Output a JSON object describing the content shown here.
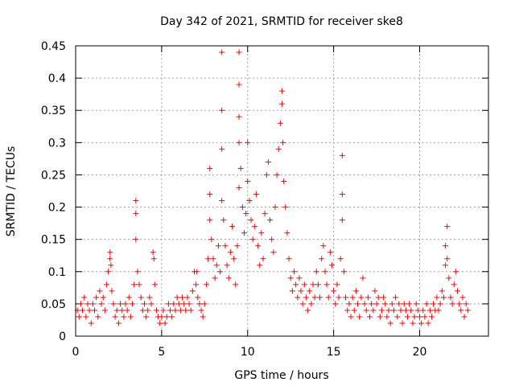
{
  "chart_data": {
    "type": "scatter",
    "title": "Day 342 of 2021, SRMTID for receiver ske8",
    "xlabel": "GPS time / hours",
    "ylabel": "SRMTID / TECUs",
    "xlim": [
      0,
      24
    ],
    "ylim": [
      0,
      0.45
    ],
    "x_ticks": [
      0,
      5,
      10,
      15,
      20
    ],
    "x_tick_labels": [
      "0",
      "5",
      "10",
      "15",
      "20"
    ],
    "y_ticks": [
      0,
      0.05,
      0.1,
      0.15,
      0.2,
      0.25,
      0.3,
      0.35,
      0.4,
      0.45
    ],
    "y_tick_labels": [
      "0",
      "0.05",
      "0.1",
      "0.15",
      "0.2",
      "0.25",
      "0.3",
      "0.35",
      "0.4",
      "0.45"
    ],
    "grid": true,
    "marker": "+",
    "series": [
      {
        "name": "SRMTID",
        "color": "#ff0000",
        "points": [
          [
            0.1,
            0.04
          ],
          [
            0.2,
            0.03
          ],
          [
            0.3,
            0.05
          ],
          [
            0.4,
            0.04
          ],
          [
            0.5,
            0.06
          ],
          [
            0.6,
            0.03
          ],
          [
            0.7,
            0.05
          ],
          [
            0.8,
            0.04
          ],
          [
            0.9,
            0.02
          ],
          [
            1.0,
            0.05
          ],
          [
            1.1,
            0.04
          ],
          [
            1.2,
            0.06
          ],
          [
            1.3,
            0.03
          ],
          [
            1.4,
            0.07
          ],
          [
            1.5,
            0.05
          ],
          [
            1.6,
            0.06
          ],
          [
            1.7,
            0.04
          ],
          [
            1.8,
            0.08
          ],
          [
            1.9,
            0.1
          ],
          [
            2.0,
            0.13
          ],
          [
            2.0,
            0.12
          ],
          [
            2.05,
            0.11
          ],
          [
            2.1,
            0.07
          ],
          [
            2.2,
            0.05
          ],
          [
            2.3,
            0.03
          ],
          [
            2.4,
            0.04
          ],
          [
            2.5,
            0.02
          ],
          [
            2.6,
            0.05
          ],
          [
            2.7,
            0.04
          ],
          [
            2.8,
            0.03
          ],
          [
            2.9,
            0.05
          ],
          [
            3.0,
            0.04
          ],
          [
            3.1,
            0.06
          ],
          [
            3.2,
            0.03
          ],
          [
            3.3,
            0.05
          ],
          [
            3.4,
            0.08
          ],
          [
            3.5,
            0.21
          ],
          [
            3.5,
            0.19
          ],
          [
            3.5,
            0.15
          ],
          [
            3.6,
            0.1
          ],
          [
            3.7,
            0.08
          ],
          [
            3.8,
            0.06
          ],
          [
            3.9,
            0.04
          ],
          [
            4.0,
            0.05
          ],
          [
            4.1,
            0.03
          ],
          [
            4.2,
            0.04
          ],
          [
            4.3,
            0.06
          ],
          [
            4.4,
            0.05
          ],
          [
            4.5,
            0.13
          ],
          [
            4.55,
            0.12
          ],
          [
            4.6,
            0.08
          ],
          [
            4.7,
            0.04
          ],
          [
            4.8,
            0.03
          ],
          [
            4.9,
            0.02
          ],
          [
            5.0,
            0.03
          ],
          [
            5.1,
            0.04
          ],
          [
            5.2,
            0.02
          ],
          [
            5.3,
            0.03
          ],
          [
            5.4,
            0.05
          ],
          [
            5.5,
            0.04
          ],
          [
            5.6,
            0.03
          ],
          [
            5.7,
            0.05
          ],
          [
            5.8,
            0.04
          ],
          [
            5.9,
            0.06
          ],
          [
            6.0,
            0.05
          ],
          [
            6.1,
            0.04
          ],
          [
            6.2,
            0.06
          ],
          [
            6.3,
            0.05
          ],
          [
            6.4,
            0.04
          ],
          [
            6.5,
            0.06
          ],
          [
            6.6,
            0.05
          ],
          [
            6.7,
            0.04
          ],
          [
            6.8,
            0.07
          ],
          [
            6.9,
            0.1
          ],
          [
            7.0,
            0.08
          ],
          [
            7.05,
            0.1
          ],
          [
            7.1,
            0.06
          ],
          [
            7.2,
            0.05
          ],
          [
            7.3,
            0.04
          ],
          [
            7.4,
            0.03
          ],
          [
            7.5,
            0.05
          ],
          [
            7.6,
            0.08
          ],
          [
            7.7,
            0.12
          ],
          [
            7.8,
            0.18
          ],
          [
            7.8,
            0.22
          ],
          [
            7.8,
            0.26
          ],
          [
            7.9,
            0.15
          ],
          [
            8.0,
            0.12
          ],
          [
            8.1,
            0.09
          ],
          [
            8.2,
            0.11
          ],
          [
            8.3,
            0.14
          ],
          [
            8.4,
            0.1
          ],
          [
            8.5,
            0.21
          ],
          [
            8.5,
            0.29
          ],
          [
            8.5,
            0.35
          ],
          [
            8.5,
            0.44
          ],
          [
            8.6,
            0.18
          ],
          [
            8.7,
            0.14
          ],
          [
            8.8,
            0.11
          ],
          [
            8.9,
            0.09
          ],
          [
            9.0,
            0.13
          ],
          [
            9.1,
            0.17
          ],
          [
            9.2,
            0.12
          ],
          [
            9.3,
            0.08
          ],
          [
            9.4,
            0.14
          ],
          [
            9.5,
            0.23
          ],
          [
            9.5,
            0.3
          ],
          [
            9.5,
            0.34
          ],
          [
            9.5,
            0.39
          ],
          [
            9.5,
            0.44
          ],
          [
            9.6,
            0.26
          ],
          [
            9.7,
            0.2
          ],
          [
            9.8,
            0.16
          ],
          [
            9.9,
            0.19
          ],
          [
            10.0,
            0.24
          ],
          [
            10.0,
            0.3
          ],
          [
            10.1,
            0.21
          ],
          [
            10.2,
            0.18
          ],
          [
            10.3,
            0.15
          ],
          [
            10.4,
            0.17
          ],
          [
            10.5,
            0.22
          ],
          [
            10.6,
            0.14
          ],
          [
            10.7,
            0.11
          ],
          [
            10.8,
            0.16
          ],
          [
            10.9,
            0.12
          ],
          [
            11.0,
            0.19
          ],
          [
            11.1,
            0.25
          ],
          [
            11.2,
            0.27
          ],
          [
            11.3,
            0.18
          ],
          [
            11.4,
            0.15
          ],
          [
            11.5,
            0.13
          ],
          [
            11.6,
            0.2
          ],
          [
            11.7,
            0.25
          ],
          [
            11.8,
            0.29
          ],
          [
            11.9,
            0.33
          ],
          [
            12.0,
            0.38
          ],
          [
            12.0,
            0.36
          ],
          [
            12.05,
            0.3
          ],
          [
            12.1,
            0.24
          ],
          [
            12.2,
            0.2
          ],
          [
            12.3,
            0.16
          ],
          [
            12.4,
            0.12
          ],
          [
            12.5,
            0.09
          ],
          [
            12.6,
            0.07
          ],
          [
            12.7,
            0.1
          ],
          [
            12.8,
            0.08
          ],
          [
            12.9,
            0.06
          ],
          [
            13.0,
            0.09
          ],
          [
            13.1,
            0.07
          ],
          [
            13.2,
            0.05
          ],
          [
            13.3,
            0.08
          ],
          [
            13.4,
            0.06
          ],
          [
            13.5,
            0.04
          ],
          [
            13.6,
            0.07
          ],
          [
            13.7,
            0.05
          ],
          [
            13.8,
            0.08
          ],
          [
            13.9,
            0.06
          ],
          [
            14.0,
            0.1
          ],
          [
            14.1,
            0.08
          ],
          [
            14.2,
            0.06
          ],
          [
            14.3,
            0.12
          ],
          [
            14.4,
            0.14
          ],
          [
            14.5,
            0.1
          ],
          [
            14.6,
            0.08
          ],
          [
            14.7,
            0.06
          ],
          [
            14.8,
            0.13
          ],
          [
            14.9,
            0.11
          ],
          [
            15.0,
            0.07
          ],
          [
            15.1,
            0.05
          ],
          [
            15.2,
            0.08
          ],
          [
            15.3,
            0.06
          ],
          [
            15.4,
            0.12
          ],
          [
            15.5,
            0.28
          ],
          [
            15.5,
            0.22
          ],
          [
            15.5,
            0.18
          ],
          [
            15.6,
            0.1
          ],
          [
            15.7,
            0.06
          ],
          [
            15.8,
            0.04
          ],
          [
            15.9,
            0.05
          ],
          [
            16.0,
            0.03
          ],
          [
            16.1,
            0.06
          ],
          [
            16.2,
            0.04
          ],
          [
            16.3,
            0.07
          ],
          [
            16.4,
            0.05
          ],
          [
            16.5,
            0.03
          ],
          [
            16.6,
            0.06
          ],
          [
            16.7,
            0.09
          ],
          [
            16.8,
            0.05
          ],
          [
            16.9,
            0.04
          ],
          [
            17.0,
            0.06
          ],
          [
            17.1,
            0.03
          ],
          [
            17.2,
            0.05
          ],
          [
            17.3,
            0.04
          ],
          [
            17.4,
            0.07
          ],
          [
            17.5,
            0.05
          ],
          [
            17.6,
            0.06
          ],
          [
            17.7,
            0.03
          ],
          [
            17.8,
            0.04
          ],
          [
            17.9,
            0.06
          ],
          [
            18.0,
            0.05
          ],
          [
            18.1,
            0.03
          ],
          [
            18.2,
            0.04
          ],
          [
            18.3,
            0.02
          ],
          [
            18.4,
            0.05
          ],
          [
            18.5,
            0.04
          ],
          [
            18.6,
            0.06
          ],
          [
            18.7,
            0.03
          ],
          [
            18.8,
            0.05
          ],
          [
            18.9,
            0.04
          ],
          [
            19.0,
            0.02
          ],
          [
            19.1,
            0.05
          ],
          [
            19.2,
            0.04
          ],
          [
            19.3,
            0.03
          ],
          [
            19.4,
            0.05
          ],
          [
            19.5,
            0.04
          ],
          [
            19.6,
            0.02
          ],
          [
            19.7,
            0.03
          ],
          [
            19.8,
            0.05
          ],
          [
            19.9,
            0.04
          ],
          [
            20.0,
            0.03
          ],
          [
            20.1,
            0.02
          ],
          [
            20.2,
            0.04
          ],
          [
            20.3,
            0.03
          ],
          [
            20.4,
            0.05
          ],
          [
            20.5,
            0.02
          ],
          [
            20.6,
            0.04
          ],
          [
            20.7,
            0.03
          ],
          [
            20.8,
            0.05
          ],
          [
            20.9,
            0.04
          ],
          [
            21.0,
            0.06
          ],
          [
            21.1,
            0.04
          ],
          [
            21.2,
            0.05
          ],
          [
            21.3,
            0.07
          ],
          [
            21.4,
            0.06
          ],
          [
            21.5,
            0.11
          ],
          [
            21.5,
            0.14
          ],
          [
            21.6,
            0.17
          ],
          [
            21.6,
            0.12
          ],
          [
            21.7,
            0.09
          ],
          [
            21.8,
            0.06
          ],
          [
            21.9,
            0.05
          ],
          [
            22.0,
            0.08
          ],
          [
            22.1,
            0.1
          ],
          [
            22.2,
            0.07
          ],
          [
            22.3,
            0.05
          ],
          [
            22.4,
            0.04
          ],
          [
            22.5,
            0.06
          ],
          [
            22.6,
            0.03
          ],
          [
            22.7,
            0.05
          ],
          [
            22.8,
            0.04
          ]
        ]
      }
    ]
  }
}
